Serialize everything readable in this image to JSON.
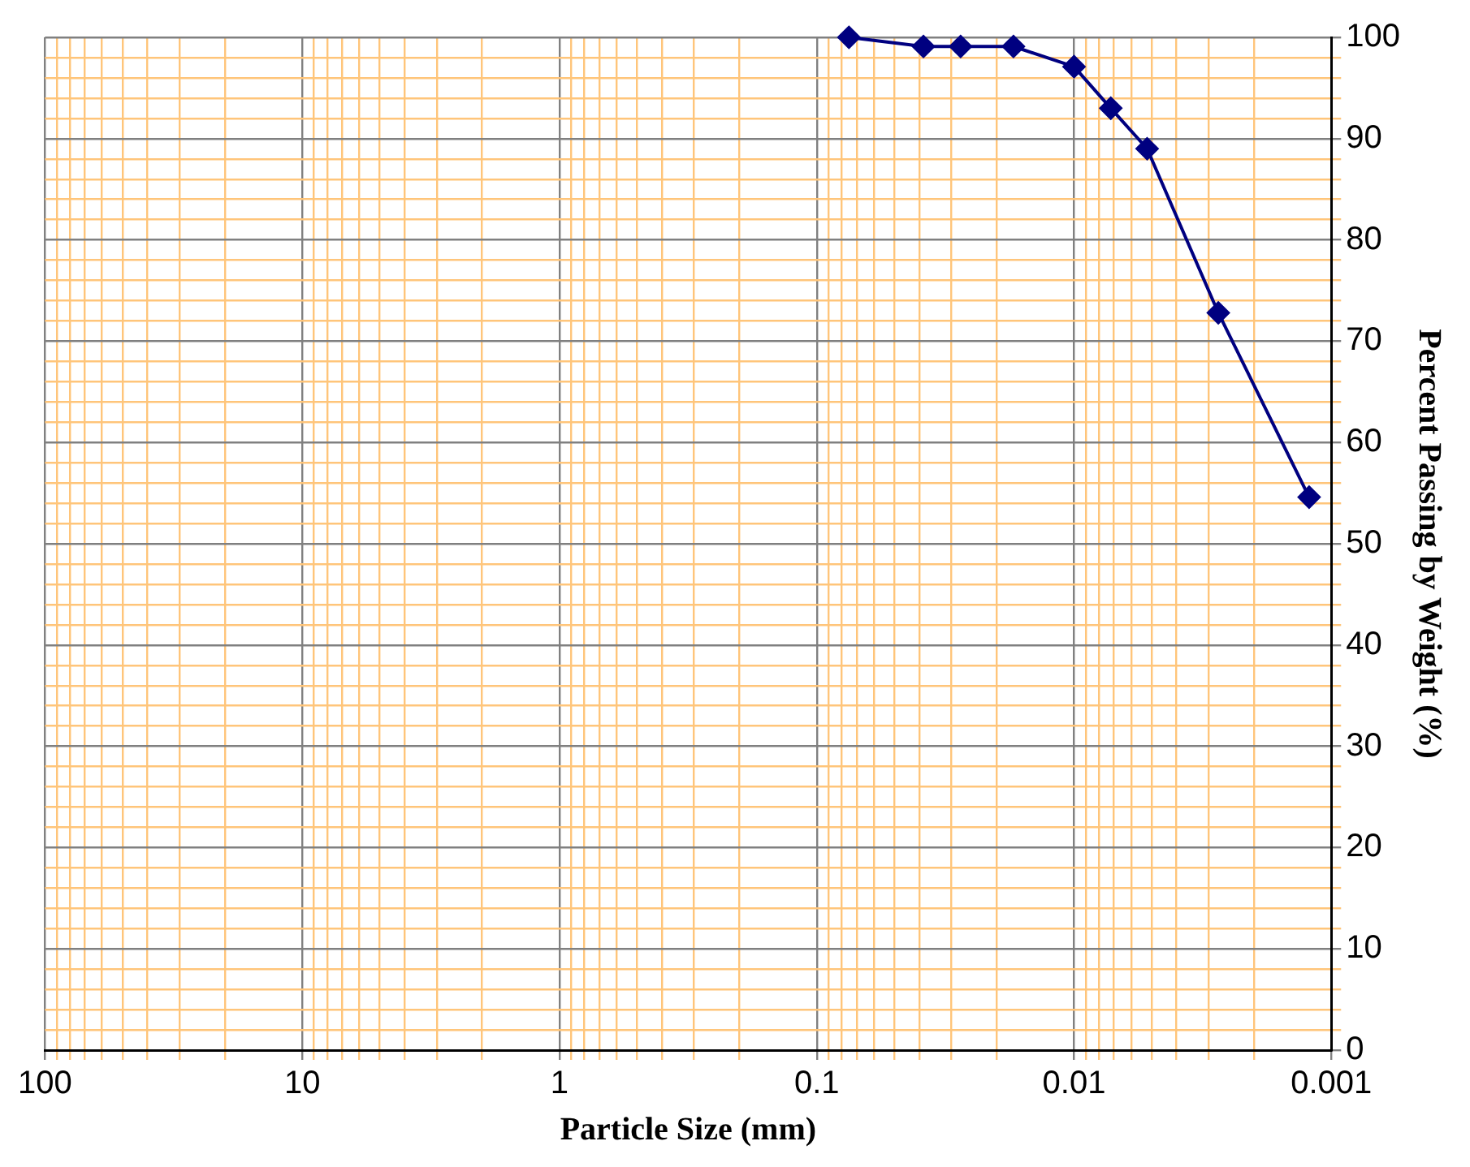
{
  "chart_data": {
    "type": "line",
    "xlabel": "Particle Size (mm)",
    "ylabel": "Percent Passing by Weight (%)",
    "log": "x",
    "grid": true,
    "marker": "diamond",
    "line_style": "solid",
    "legend": false,
    "xlim": [
      100,
      0.001
    ],
    "xticks": [
      100,
      {
        "value": 90,
        "label": null
      },
      {
        "value": 80,
        "label": null
      },
      {
        "value": 70,
        "label": null
      },
      {
        "value": 60,
        "label": null
      },
      {
        "value": 50,
        "label": null
      },
      {
        "value": 40,
        "label": null
      },
      {
        "value": 30,
        "label": null
      },
      {
        "value": 20,
        "label": null
      },
      10,
      {
        "value": 9,
        "label": null
      },
      {
        "value": 8,
        "label": null
      },
      {
        "value": 7,
        "label": null
      },
      {
        "value": 6,
        "label": null
      },
      {
        "value": 5,
        "label": null
      },
      {
        "value": 4,
        "label": null
      },
      {
        "value": 3,
        "label": null
      },
      {
        "value": 2,
        "label": null
      },
      1,
      {
        "value": 0.9,
        "label": null
      },
      {
        "value": 0.8,
        "label": null
      },
      {
        "value": 0.7,
        "label": null
      },
      {
        "value": 0.6,
        "label": null
      },
      {
        "value": 0.5,
        "label": null
      },
      {
        "value": 0.4,
        "label": null
      },
      {
        "value": 0.3,
        "label": null
      },
      {
        "value": 0.2,
        "label": null
      },
      0.1,
      {
        "value": 0.09,
        "label": null
      },
      {
        "value": 0.08,
        "label": null
      },
      {
        "value": 0.07,
        "label": null
      },
      {
        "value": 0.06,
        "label": null
      },
      {
        "value": 0.05,
        "label": null
      },
      {
        "value": 0.04,
        "label": null
      },
      {
        "value": 0.03,
        "label": null
      },
      {
        "value": 0.02,
        "label": null
      },
      0.01,
      {
        "value": 0.009,
        "label": null
      },
      {
        "value": 0.008,
        "label": null
      },
      {
        "value": 0.007,
        "label": null
      },
      {
        "value": 0.006,
        "label": null
      },
      {
        "value": 0.005,
        "label": null
      },
      {
        "value": 0.004,
        "label": null
      },
      {
        "value": 0.003,
        "label": null
      },
      {
        "value": 0.002,
        "label": null
      },
      0.001
    ],
    "ylim": [
      0,
      100
    ],
    "yticks": [
      0,
      {
        "value": 2,
        "label": null
      },
      {
        "value": 4,
        "label": null
      },
      {
        "value": 6,
        "label": null
      },
      {
        "value": 8,
        "label": null
      },
      10,
      {
        "value": 12,
        "label": null
      },
      {
        "value": 14,
        "label": null
      },
      {
        "value": 16,
        "label": null
      },
      {
        "value": 18,
        "label": null
      },
      20,
      {
        "value": 22,
        "label": null
      },
      {
        "value": 24,
        "label": null
      },
      {
        "value": 26,
        "label": null
      },
      {
        "value": 28,
        "label": null
      },
      30,
      {
        "value": 32,
        "label": null
      },
      {
        "value": 34,
        "label": null
      },
      {
        "value": 36,
        "label": null
      },
      {
        "value": 38,
        "label": null
      },
      40,
      {
        "value": 42,
        "label": null
      },
      {
        "value": 44,
        "label": null
      },
      {
        "value": 46,
        "label": null
      },
      {
        "value": 48,
        "label": null
      },
      50,
      {
        "value": 52,
        "label": null
      },
      {
        "value": 54,
        "label": null
      },
      {
        "value": 56,
        "label": null
      },
      {
        "value": 58,
        "label": null
      },
      60,
      {
        "value": 62,
        "label": null
      },
      {
        "value": 64,
        "label": null
      },
      {
        "value": 66,
        "label": null
      },
      {
        "value": 68,
        "label": null
      },
      70,
      {
        "value": 72,
        "label": null
      },
      {
        "value": 74,
        "label": null
      },
      {
        "value": 76,
        "label": null
      },
      {
        "value": 78,
        "label": null
      },
      80,
      {
        "value": 82,
        "label": null
      },
      {
        "value": 84,
        "label": null
      },
      {
        "value": 86,
        "label": null
      },
      {
        "value": 88,
        "label": null
      },
      90,
      {
        "value": 92,
        "label": null
      },
      {
        "value": 94,
        "label": null
      },
      {
        "value": 96,
        "label": null
      },
      {
        "value": 98,
        "label": null
      },
      100
    ],
    "x": [
      0.075,
      0.0385,
      0.0276,
      0.0172,
      0.01,
      0.0072,
      0.0052,
      0.00275,
      0.00122
    ],
    "series": [
      {
        "color": "#000080",
        "values": [
          100,
          99.1,
          99.1,
          99.1,
          97.1,
          93,
          89,
          72.8,
          54.6
        ]
      }
    ]
  }
}
